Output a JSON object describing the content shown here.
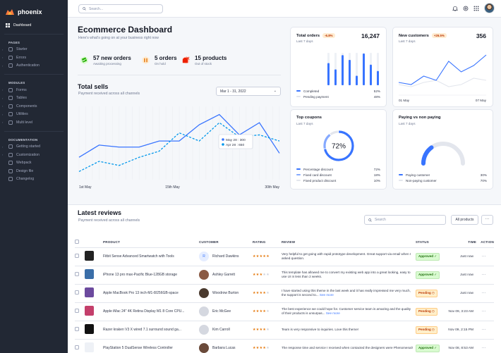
{
  "brand": {
    "name": "phoenix"
  },
  "topbar": {
    "search_placeholder": "Search..."
  },
  "sidebar": {
    "dashboard": "Dashboard",
    "sections": [
      {
        "heading": "PAGES",
        "items": [
          {
            "label": "Starter",
            "icon": "starter-icon",
            "caret": true
          },
          {
            "label": "Errors",
            "icon": "errors-icon",
            "caret": true
          },
          {
            "label": "Authentication",
            "icon": "authentication-icon",
            "caret": true
          }
        ]
      },
      {
        "heading": "MODULES",
        "items": [
          {
            "label": "Forms",
            "icon": "forms-icon",
            "caret": true
          },
          {
            "label": "Tables",
            "icon": "tables-icon",
            "caret": true
          },
          {
            "label": "Components",
            "icon": "components-icon",
            "caret": true
          },
          {
            "label": "Utilities",
            "icon": "utilities-icon",
            "caret": true
          },
          {
            "label": "Multi level",
            "icon": "multi-level-icon",
            "caret": true
          }
        ]
      },
      {
        "heading": "DOCUMENTATION",
        "items": [
          {
            "label": "Getting started",
            "icon": "getting-started-icon",
            "caret": true
          },
          {
            "label": "Customization",
            "icon": "customization-icon",
            "caret": true
          },
          {
            "label": "Webpack",
            "icon": "webpack-icon",
            "caret": false
          },
          {
            "label": "Design file",
            "icon": "design-file-icon",
            "caret": false
          },
          {
            "label": "Changelog",
            "icon": "changelog-icon",
            "caret": false
          }
        ]
      }
    ]
  },
  "header": {
    "title": "Ecommerce Dashboard",
    "subtitle": "Here's what's going on at your business right now"
  },
  "stats": [
    {
      "value": "57 new orders",
      "label": "Awaiting processing",
      "color": "#25b003"
    },
    {
      "value": "5 orders",
      "label": "On hold",
      "color": "#e5780b"
    },
    {
      "value": "15 products",
      "label": "Out of stock",
      "color": "#ed2000"
    }
  ],
  "total_sells": {
    "title": "Total sells",
    "subtitle": "Payment received across all channels",
    "date_range": "Mar 1 - 31, 2022",
    "tooltip_a": "May 28 : 300",
    "tooltip_b": "Apr 28 : 650"
  },
  "chart_data": [
    {
      "type": "line",
      "title": "Total sells",
      "x_tick_labels": [
        "1st May",
        "15th May",
        "30th May"
      ],
      "grid": true,
      "x": [
        1,
        4,
        7,
        10,
        13,
        16,
        19,
        22,
        25,
        28,
        31
      ],
      "series": [
        {
          "color": "#3874ff",
          "style": "solid",
          "values": [
            55,
            85,
            80,
            80,
            95,
            95,
            135,
            160,
            110,
            140,
            65
          ]
        },
        {
          "color": "#0097eb",
          "style": "dashed",
          "values": [
            20,
            45,
            35,
            55,
            70,
            115,
            95,
            140,
            105,
            110,
            95
          ]
        }
      ]
    },
    {
      "type": "bar",
      "title": "Total orders",
      "subtitle": "Last 7 days",
      "total": "16,247",
      "badge": "-6.8%",
      "values": [
        70,
        50,
        95,
        80,
        30,
        100,
        65,
        45
      ],
      "legend": [
        {
          "label": "Completed",
          "value": "52%",
          "color": "#3874ff"
        },
        {
          "label": "Pending payment",
          "value": "48%",
          "color": "#e3e6ed"
        }
      ]
    },
    {
      "type": "line",
      "title": "New customers",
      "subtitle": "Last 7 days",
      "total": "356",
      "badge": "+26.5%",
      "x_tick_labels": [
        "01 May",
        "07 May"
      ],
      "series": [
        {
          "color": "#3874ff",
          "values": [
            30,
            25,
            45,
            35,
            80,
            55,
            70,
            95
          ]
        },
        {
          "color": "#e3e6ed",
          "values": [
            25,
            20,
            30,
            35,
            20,
            25,
            40,
            35
          ]
        }
      ]
    },
    {
      "type": "pie",
      "title": "Top coupons",
      "subtitle": "Last 7 days",
      "center": "72%",
      "values": [
        72,
        18,
        10
      ],
      "legend": [
        {
          "label": "Percentage discount",
          "value": "72%",
          "color": "#3874ff"
        },
        {
          "label": "Fixed card discount",
          "value": "18%",
          "color": "#85a9ff"
        },
        {
          "label": "Fixed product discount",
          "value": "10%",
          "color": "#e3e6ed"
        }
      ]
    },
    {
      "type": "gauge",
      "title": "Paying vs non paying",
      "subtitle": "Last 7 days",
      "values": [
        30,
        70
      ],
      "legend": [
        {
          "label": "Paying customer",
          "value": "30%",
          "color": "#3874ff"
        },
        {
          "label": "Non-paying customer",
          "value": "70%",
          "color": "#e3e6ed"
        }
      ]
    }
  ],
  "reviews": {
    "title": "Latest reviews",
    "subtitle": "Payment received across all channels",
    "search_placeholder": "Search",
    "all_products": "All products",
    "more": "···",
    "columns": {
      "product": "PRODUCT",
      "customer": "CUSTOMER",
      "rating": "RATING",
      "review": "REVIEW",
      "status": "STATUS",
      "time": "TIME",
      "action": "ACTION"
    },
    "rows": [
      {
        "product": "Fitbit Sense Advanced Smartwatch with Tools",
        "customer": "Richard Dawkins",
        "initial": "R",
        "rating": 5,
        "review": "Very helpful to get going with rapid prototype development. Great support via email when I asked question.",
        "more": "",
        "status": "Approved",
        "time": "Just now",
        "thumb": "#222",
        "av": "#e5edff"
      },
      {
        "product": "iPhone 13 pro max-Pacific Blue-128GB storage",
        "customer": "Ashley Garrett",
        "initial": "",
        "rating": 3,
        "review": "This template has allowed me to convert my existing web app into a great looking, easy to use UI in less than 2 weeks.",
        "more": "",
        "status": "Approved",
        "time": "Just now",
        "thumb": "#3a6ea8",
        "av": "#8a5a44"
      },
      {
        "product": "Apple MacBook Pro 13 inch-M1-8/256GB-space",
        "customer": "Woodrow Burton",
        "initial": "",
        "rating": 4,
        "review": "I have started using this theme in the last week and it has really impressed me very much, the support is second to...",
        "more": "See more",
        "status": "Pending",
        "time": "Just now",
        "thumb": "#6c4a9e",
        "av": "#4a3a2e"
      },
      {
        "product": "Apple iMac 24\" 4K Retina Display M1 8 Core CPU...",
        "customer": "Eric McGee",
        "initial": "",
        "rating": 4,
        "review": "The best experience we could hope for. Customer service team is amazing and the quality of their products is unsurpas...",
        "more": "See more",
        "status": "Pending",
        "time": "Nov 09, 3:23 AM",
        "thumb": "#c43f6b",
        "av": "#d5d8e0"
      },
      {
        "product": "Razer kraken V3 X wired 7.1 surround sound ga...",
        "customer": "Kim Carroll",
        "initial": "",
        "rating": 4,
        "review": "Team is very responsive to inquiries. Love this theme!",
        "more": "",
        "status": "Pending",
        "time": "Nov 09, 2:15 PM",
        "thumb": "#111",
        "av": "#d5d8e0"
      },
      {
        "product": "PlayStation 5 DualSense Wireless Controller",
        "customer": "Barbara Lucas",
        "initial": "",
        "rating": 4,
        "review": "The response time and service I received when contacted the designers were Phenomenal!",
        "more": "",
        "status": "Approved",
        "time": "Nov 08, 8:53 AM",
        "thumb": "#eef1f6",
        "av": "#6a4a3a"
      }
    ]
  }
}
